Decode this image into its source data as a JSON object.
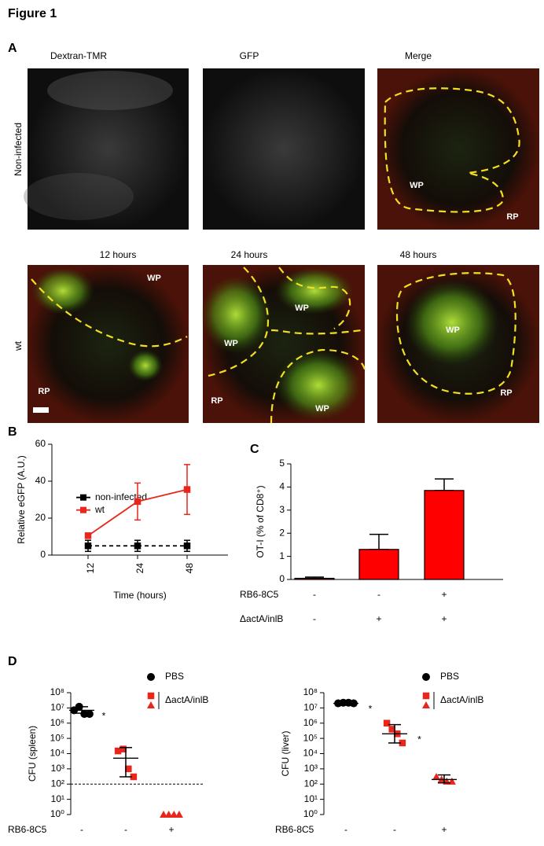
{
  "title": "Figure 1",
  "panel_a": {
    "label": "A",
    "columns": [
      "Dextran-TMR",
      "GFP",
      "Merge"
    ],
    "row_labels": [
      "Non-infected",
      "wt"
    ],
    "time_labels": [
      "12 hours",
      "24 hours",
      "48 hours"
    ],
    "region_labels": [
      [
        "WP",
        "RP"
      ],
      [
        "WP",
        "RP"
      ],
      [
        "WP",
        "WP",
        "RP",
        "WP"
      ],
      [
        "WP",
        "RP"
      ]
    ]
  },
  "chart_data": [
    {
      "panel": "B",
      "type": "line",
      "categories": [
        "12",
        "24",
        "48"
      ],
      "xlabel": "Time (hours)",
      "ylabel": "Relative eGFP (A.U.)",
      "ylim": [
        0,
        60
      ],
      "yticks": [
        0,
        20,
        40,
        60
      ],
      "legend": "left",
      "series": [
        {
          "name": "non-infected",
          "color": "#000000",
          "dashed": true,
          "values": [
            5,
            5,
            5
          ],
          "errors": [
            3,
            3,
            3
          ]
        },
        {
          "name": "wt",
          "color": "#e8261c",
          "dashed": false,
          "values": [
            10.5,
            29,
            35.5
          ],
          "errors": [
            0,
            10,
            13.5
          ]
        }
      ]
    },
    {
      "panel": "C",
      "type": "bar",
      "categories": [
        null,
        null,
        null
      ],
      "ylabel": "OT-I (% of CD8⁺)",
      "color": "#ff0000",
      "ylim": [
        0,
        5
      ],
      "yticks": [
        0,
        1,
        2,
        3,
        4,
        5
      ],
      "values": [
        0.05,
        1.3,
        3.85
      ],
      "errors": [
        0.05,
        0.65,
        0.5
      ],
      "factors": [
        {
          "name": "RB6-8C5",
          "values": [
            "-",
            "-",
            "+"
          ]
        },
        {
          "name": "ΔactA/inlB",
          "values": [
            "-",
            "+",
            "+"
          ]
        }
      ]
    },
    {
      "panel": "D",
      "type": "scatter",
      "ylabel": "CFU (spleen)",
      "log_y": true,
      "legend": "upper right",
      "ylim": [
        1,
        100000000
      ],
      "yticks": [
        {
          "value": 1,
          "label": "10⁰"
        },
        {
          "value": 10,
          "label": "10¹"
        },
        {
          "value": 100,
          "label": "10²"
        },
        {
          "value": 1000,
          "label": "10³"
        },
        {
          "value": 10000,
          "label": "10⁴"
        },
        {
          "value": 100000,
          "label": "10⁵"
        },
        {
          "value": 1000000,
          "label": "10⁶"
        },
        {
          "value": 10000000,
          "label": "10⁷"
        },
        {
          "value": 100000000,
          "label": "10⁸"
        }
      ],
      "hline": 100,
      "annotations": [
        "*"
      ],
      "series": [
        {
          "name": "PBS",
          "color": "#000000",
          "marker": "circle",
          "values": [
            7000000,
            12000000,
            4000000,
            4000000
          ],
          "mean": 7000000,
          "range": [
            4500000,
            12000000
          ]
        },
        {
          "name": "ΔactA/inlB",
          "color": "#e8261c",
          "marker": "square",
          "values": [
            15000,
            20000,
            1000,
            300
          ],
          "mean": 5000,
          "range": [
            300,
            25000
          ]
        },
        {
          "color": "#e8261c",
          "marker": "triangle",
          "values": [
            1,
            1,
            1,
            1
          ]
        }
      ],
      "factors": [
        {
          "name": "RB6-8C5",
          "values": [
            "-",
            "-",
            "+"
          ]
        }
      ]
    },
    {
      "type": "scatter",
      "ylabel": "CFU (liver)",
      "log_y": true,
      "legend": "upper right",
      "ylim": [
        1,
        100000000
      ],
      "yticks": [
        {
          "value": 1,
          "label": "10⁰"
        },
        {
          "value": 10,
          "label": "10¹"
        },
        {
          "value": 100,
          "label": "10²"
        },
        {
          "value": 1000,
          "label": "10³"
        },
        {
          "value": 10000,
          "label": "10⁴"
        },
        {
          "value": 100000,
          "label": "10⁵"
        },
        {
          "value": 1000000,
          "label": "10⁶"
        },
        {
          "value": 10000000,
          "label": "10⁷"
        },
        {
          "value": 100000000,
          "label": "10⁸"
        }
      ],
      "annotations": [
        "*",
        "*"
      ],
      "series": [
        {
          "name": "PBS",
          "color": "#000000",
          "marker": "circle",
          "values": [
            20000000,
            22000000,
            22000000,
            20000000
          ],
          "mean": 20000000,
          "range": [
            15000000,
            27000000
          ]
        },
        {
          "name": "ΔactA/inlB",
          "color": "#e8261c",
          "marker": "square",
          "values": [
            1000000,
            400000,
            200000,
            50000
          ],
          "mean": 200000,
          "range": [
            50000,
            800000
          ]
        },
        {
          "color": "#e8261c",
          "marker": "triangle",
          "values": [
            300,
            200,
            150,
            150
          ],
          "mean": 200,
          "range": [
            120,
            400
          ]
        }
      ],
      "factors": [
        {
          "name": "RB6-8C5",
          "values": [
            "-",
            "-",
            "+"
          ]
        }
      ]
    }
  ]
}
